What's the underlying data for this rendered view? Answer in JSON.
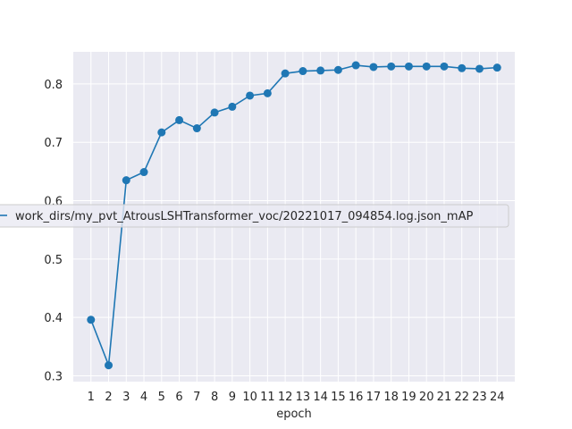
{
  "chart_data": {
    "type": "line",
    "title": "",
    "xlabel": "epoch",
    "ylabel": "",
    "x": [
      1,
      2,
      3,
      4,
      5,
      6,
      7,
      8,
      9,
      10,
      11,
      12,
      13,
      14,
      15,
      16,
      17,
      18,
      19,
      20,
      21,
      22,
      23,
      24
    ],
    "series": [
      {
        "name": "work_dirs/my_pvt_AtrousLSHTransformer_voc/20221017_094854.log.json_mAP",
        "values": [
          0.396,
          0.318,
          0.635,
          0.649,
          0.717,
          0.738,
          0.724,
          0.751,
          0.761,
          0.78,
          0.784,
          0.818,
          0.822,
          0.823,
          0.824,
          0.832,
          0.829,
          0.83,
          0.83,
          0.83,
          0.83,
          0.827,
          0.826,
          0.828
        ],
        "color": "#1f77b4"
      }
    ],
    "xticks": [
      "1",
      "2",
      "3",
      "4",
      "5",
      "6",
      "7",
      "8",
      "9",
      "10",
      "11",
      "12",
      "13",
      "14",
      "15",
      "16",
      "17",
      "18",
      "19",
      "20",
      "21",
      "22",
      "23",
      "24"
    ],
    "yticks": [
      "0.3",
      "0.4",
      "0.5",
      "0.6",
      "0.7",
      "0.8"
    ],
    "ylim": [
      0.29,
      0.855
    ],
    "xlim": [
      0,
      25
    ],
    "grid": true,
    "legend_position": "center-left",
    "background_color": "#eaeaf2"
  }
}
